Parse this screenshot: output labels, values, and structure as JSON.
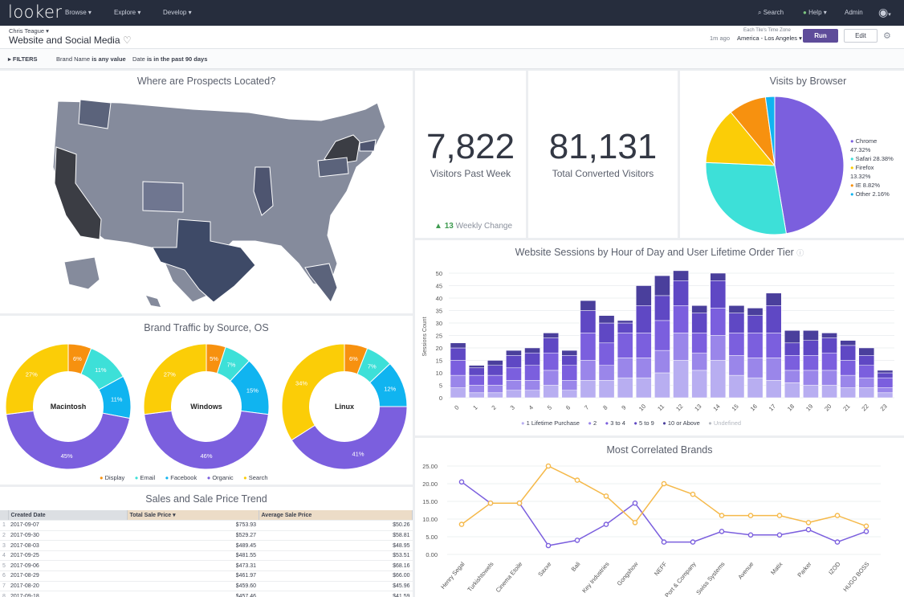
{
  "app": {
    "logo": "looker",
    "nav": [
      "Browse",
      "Explore",
      "Develop"
    ],
    "search": "Search",
    "help": "Help",
    "user": "Admin"
  },
  "header": {
    "owner": "Chris Teague",
    "title": "Website and Social Media",
    "tz_label": "Each Tile's Time Zone",
    "tz_ago": "1m ago",
    "tz_value": "America - Los Angeles",
    "run": "Run",
    "edit": "Edit"
  },
  "filters": {
    "label": "FILTERS",
    "f1_name": "Brand Name",
    "f1_cond": "is any value",
    "f2_name": "Date",
    "f2_cond": "is in the past 90 days"
  },
  "colors": {
    "purple": "#7b5fde",
    "teal": "#3de0d8",
    "yellow": "#fbcd07",
    "orange": "#f7910f",
    "blue": "#10b4f0",
    "lavender": "#b8aef1",
    "navy": "#4a3f9c"
  },
  "map": {
    "title": "Where are Prospects Located?"
  },
  "kpi1": {
    "value": "7,822",
    "label": "Visitors Past Week",
    "change": "13",
    "change_label": "Weekly Change"
  },
  "kpi2": {
    "value": "81,131",
    "label": "Total Converted Visitors"
  },
  "browser": {
    "title": "Visits by Browser",
    "legend": [
      "Chrome",
      "47.32%",
      "Safari 28.38%",
      "Firefox",
      "13.32%",
      "IE 8.82%",
      "Other 2.16%"
    ]
  },
  "brand": {
    "title": "Brand Traffic by Source, OS",
    "legend": [
      "Display",
      "Email",
      "Facebook",
      "Organic",
      "Search"
    ],
    "donuts": [
      {
        "name": "Macintosh",
        "labels": [
          "6%",
          "11%",
          "11%",
          "45%",
          "27%"
        ]
      },
      {
        "name": "Windows",
        "labels": [
          "5%",
          "7%",
          "15%",
          "46%",
          "27%"
        ]
      },
      {
        "name": "Linux",
        "labels": [
          "6%",
          "7%",
          "12%",
          "41%",
          "34%"
        ]
      }
    ]
  },
  "sales": {
    "title": "Sales and Sale Price Trend",
    "headers": [
      "Created Date",
      "Total Sale Price",
      "Average Sale Price"
    ],
    "rows": [
      [
        "1",
        "2017-09-07",
        "$753.93",
        "$50.26"
      ],
      [
        "2",
        "2017-09-30",
        "$529.27",
        "$58.81"
      ],
      [
        "3",
        "2017-08-03",
        "$489.45",
        "$48.95"
      ],
      [
        "4",
        "2017-09-25",
        "$481.55",
        "$53.51"
      ],
      [
        "5",
        "2017-09-06",
        "$473.31",
        "$68.16"
      ],
      [
        "6",
        "2017-08-29",
        "$461.97",
        "$66.00"
      ],
      [
        "7",
        "2017-08-20",
        "$459.60",
        "$45.96"
      ],
      [
        "8",
        "2017-09-18",
        "$457.46",
        "$41.59"
      ]
    ]
  },
  "sessions": {
    "title": "Website Sessions by Hour of Day and User Lifetime Order Tier",
    "ylabel": "Sessions Count",
    "legend": [
      "1 Lifetime Purchase",
      "2",
      "3 to 4",
      "5 to 9",
      "10 or Above",
      "Undefined"
    ]
  },
  "brands": {
    "title": "Most Correlated Brands"
  },
  "chart_data": [
    {
      "type": "bar",
      "title": "Website Sessions by Hour of Day and User Lifetime Order Tier",
      "ylabel": "Sessions Count",
      "ylim": [
        0,
        50
      ],
      "yticks": [
        "0",
        "5",
        "10",
        "15",
        "20",
        "25",
        "30",
        "35",
        "40",
        "45",
        "50"
      ],
      "categories": [
        "0",
        "1",
        "2",
        "3",
        "4",
        "5",
        "6",
        "7",
        "8",
        "9",
        "10",
        "11",
        "12",
        "13",
        "14",
        "15",
        "16",
        "17",
        "18",
        "19",
        "20",
        "21",
        "22",
        "23"
      ],
      "series": [
        {
          "name": "1 Lifetime Purchase",
          "values": [
            4,
            2,
            2,
            3,
            3,
            5,
            3,
            7,
            7,
            8,
            8,
            10,
            15,
            11,
            15,
            9,
            8,
            7,
            6,
            5,
            5,
            4,
            4,
            2
          ]
        },
        {
          "name": "2",
          "values": [
            5,
            3,
            3,
            4,
            4,
            6,
            4,
            8,
            6,
            8,
            8,
            9,
            11,
            7,
            10,
            8,
            8,
            9,
            5,
            6,
            6,
            5,
            4,
            2
          ]
        },
        {
          "name": "3 to 4",
          "values": [
            6,
            4,
            4,
            5,
            6,
            7,
            6,
            11,
            9,
            10,
            10,
            12,
            11,
            8,
            11,
            9,
            10,
            10,
            6,
            6,
            7,
            6,
            5,
            4
          ]
        },
        {
          "name": "5 to 9",
          "values": [
            5,
            3,
            4,
            5,
            5,
            6,
            4,
            9,
            8,
            4,
            11,
            10,
            10,
            8,
            11,
            8,
            7,
            11,
            5,
            6,
            6,
            6,
            4,
            2
          ]
        },
        {
          "name": "10 or Above",
          "values": [
            2,
            1,
            2,
            2,
            2,
            2,
            2,
            4,
            3,
            1,
            8,
            8,
            4,
            3,
            3,
            3,
            3,
            5,
            5,
            4,
            2,
            2,
            3,
            1
          ]
        }
      ]
    },
    {
      "type": "line",
      "title": "Most Correlated Brands",
      "ylim": [
        0,
        25
      ],
      "yticks": [
        "0.00",
        "5.00",
        "10.00",
        "15.00",
        "20.00",
        "25.00"
      ],
      "categories": [
        "Henry Segal",
        "Turkishtowels",
        "Cinema Etoile",
        "Saxxe",
        "Bali",
        "Key Industries",
        "Gongshow",
        "NEFF",
        "Port & Company",
        "Swiss Systems",
        "Avenue",
        "Matix",
        "Parker",
        "IZOD",
        "HUGO BOSS"
      ],
      "series": [
        {
          "name": "purple",
          "values": [
            20.5,
            14.5,
            14.5,
            2.5,
            4,
            8.5,
            14.5,
            3.5,
            3.5,
            6.5,
            5.5,
            5.5,
            7,
            3.5,
            6.5
          ]
        },
        {
          "name": "yellow",
          "values": [
            8.5,
            14.5,
            14.5,
            25,
            21,
            16.5,
            9,
            20,
            17,
            11,
            11,
            11,
            9,
            11,
            8
          ]
        }
      ]
    },
    {
      "type": "pie",
      "title": "Visits by Browser",
      "labels": [
        "Chrome",
        "Safari",
        "Firefox",
        "IE",
        "Other"
      ],
      "values": [
        47.32,
        28.38,
        13.32,
        8.82,
        2.16
      ]
    }
  ]
}
